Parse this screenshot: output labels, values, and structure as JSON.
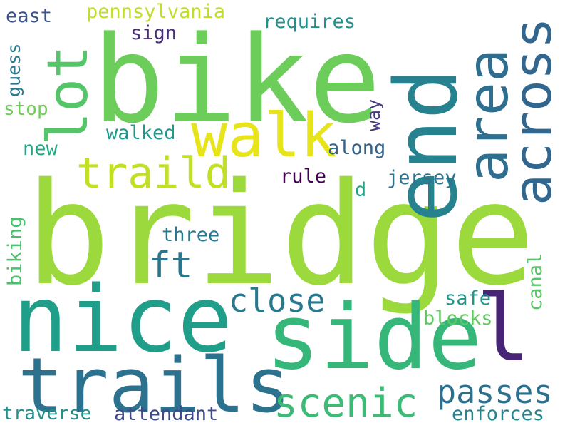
{
  "words": {
    "bridge": {
      "text": "bridge",
      "color": "#9bd93c"
    },
    "bike": {
      "text": "bike",
      "color": "#6ccd5a"
    },
    "nice": {
      "text": "nice",
      "color": "#1f9e89"
    },
    "side": {
      "text": "side",
      "color": "#35b779"
    },
    "end": {
      "text": "end",
      "color": "#26828e"
    },
    "trails": {
      "text": "trails",
      "color": "#2c728e"
    },
    "area": {
      "text": "area",
      "color": "#2e6e8e"
    },
    "across": {
      "text": "across",
      "color": "#31668e"
    },
    "walk": {
      "text": "walk",
      "color": "#e7e419"
    },
    "lot": {
      "text": "lot",
      "color": "#54c568"
    },
    "l": {
      "text": "l",
      "color": "#482475"
    },
    "traild": {
      "text": "traild",
      "color": "#c0df25"
    },
    "scenic": {
      "text": "scenic",
      "color": "#3bbb75"
    },
    "passes": {
      "text": "passes",
      "color": "#2d708e"
    },
    "close": {
      "text": "close",
      "color": "#2a788e"
    },
    "ft": {
      "text": "ft",
      "color": "#2a768e"
    },
    "pennsylvania": {
      "text": "pennsylvania",
      "color": "#bddf26"
    },
    "requires": {
      "text": "requires",
      "color": "#21918c"
    },
    "east": {
      "text": "east",
      "color": "#3b528b"
    },
    "sign": {
      "text": "sign",
      "color": "#472d7b"
    },
    "guess": {
      "text": "guess",
      "color": "#2a788e"
    },
    "stop": {
      "text": "stop",
      "color": "#6ece58"
    },
    "walked": {
      "text": "walked",
      "color": "#1f988b"
    },
    "new": {
      "text": "new",
      "color": "#22a785"
    },
    "along": {
      "text": "along",
      "color": "#33638d"
    },
    "way": {
      "text": "way",
      "color": "#443983"
    },
    "rule": {
      "text": "rule",
      "color": "#440154"
    },
    "jersey": {
      "text": "jersey",
      "color": "#2c738e"
    },
    "d": {
      "text": "d",
      "color": "#20a486"
    },
    "three": {
      "text": "three",
      "color": "#2a788e"
    },
    "biking": {
      "text": "biking",
      "color": "#4ac16d"
    },
    "canal": {
      "text": "canal",
      "color": "#56c667"
    },
    "safe": {
      "text": "safe",
      "color": "#1f978b"
    },
    "blocks": {
      "text": "blocks",
      "color": "#5ec962"
    },
    "traverse": {
      "text": "traverse",
      "color": "#21918c"
    },
    "attendant": {
      "text": "attendant",
      "color": "#3e4a89"
    },
    "enforces": {
      "text": "enforces",
      "color": "#25858e"
    }
  }
}
